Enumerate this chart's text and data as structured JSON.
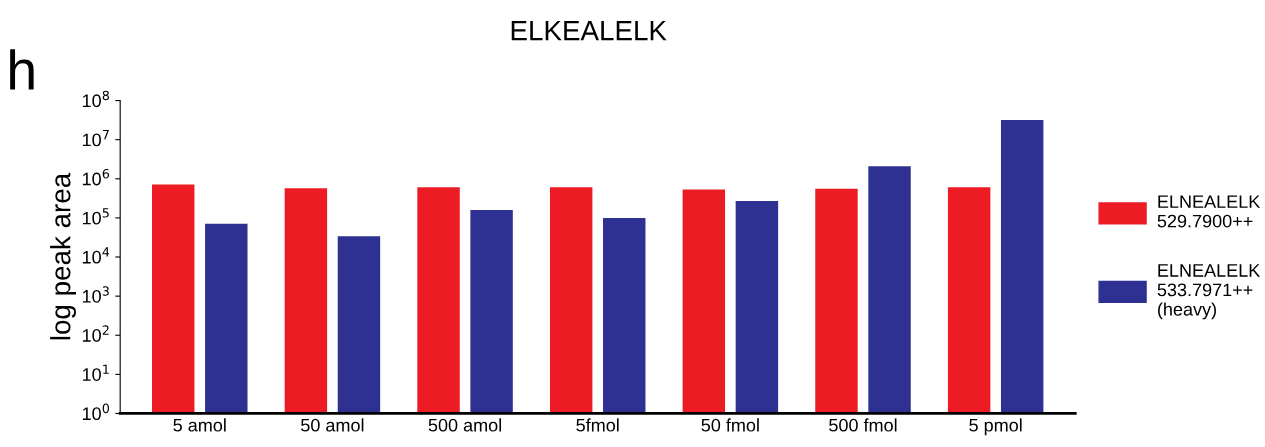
{
  "chart_data": {
    "type": "bar",
    "title": "ELKEALELK",
    "ylabel": "log peak area",
    "annotations": [
      "h"
    ],
    "categories": [
      "5 amol",
      "50 amol",
      "500 amol",
      "5fmol",
      "50 fmol",
      "500 fmol",
      "5 pmol"
    ],
    "series": [
      {
        "name": "ELNEALELK\n529.7900++",
        "color": "#ed1c24",
        "values": [
          720000,
          570000,
          610000,
          610000,
          530000,
          560000,
          610000
        ]
      },
      {
        "name": "ELNEALELK\n533.7971++\n(heavy)",
        "color": "#2e3192",
        "values": [
          71000,
          34000,
          160000,
          100000,
          270000,
          2100000,
          32000000
        ]
      }
    ],
    "log": "y",
    "ylim": [
      1,
      100000000
    ],
    "yticks": [
      {
        "value": 1,
        "label": "10$^{0}$"
      },
      {
        "value": 10,
        "label": "10$^{1}$"
      },
      {
        "value": 100,
        "label": "10$^{2}$"
      },
      {
        "value": 1000,
        "label": "10$^{3}$"
      },
      {
        "value": 10000,
        "label": "10$^{4}$"
      },
      {
        "value": 100000,
        "label": "10$^{5}$"
      },
      {
        "value": 1000000,
        "label": "10$^{6}$"
      },
      {
        "value": 10000000,
        "label": "10$^{7}$"
      },
      {
        "value": 100000000,
        "label": "10$^{8}$"
      }
    ],
    "grid": false,
    "legend": "right"
  }
}
